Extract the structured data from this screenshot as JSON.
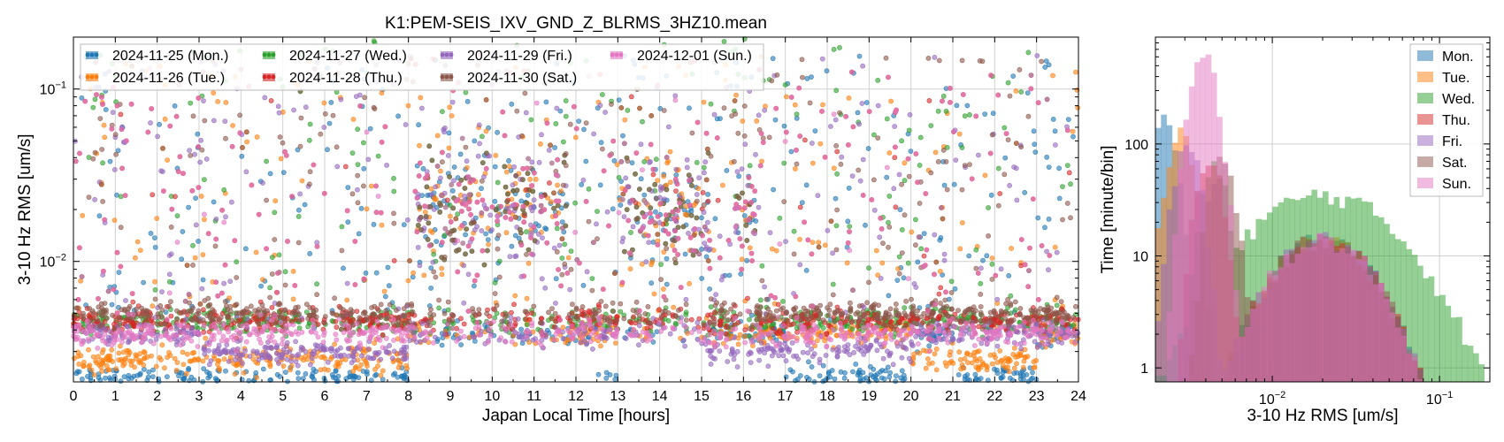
{
  "chart_data": [
    {
      "type": "scatter",
      "title": "K1:PEM-SEIS_IXV_GND_Z_BLRMS_3HZ10.mean",
      "xlabel": "Japan Local Time [hours]",
      "ylabel": "3-10 Hz RMS [um/s]",
      "xlim": [
        0,
        24
      ],
      "ylim": [
        0.002,
        0.2
      ],
      "yscale": "log",
      "grid": true,
      "legend_position": "top-left",
      "x_ticks": [
        "0",
        "1",
        "2",
        "3",
        "4",
        "5",
        "6",
        "7",
        "8",
        "9",
        "10",
        "11",
        "12",
        "13",
        "14",
        "15",
        "16",
        "17",
        "18",
        "19",
        "20",
        "21",
        "22",
        "23",
        "24"
      ],
      "y_ticks": [
        {
          "value": 0.01,
          "base": "10",
          "exp": "−2"
        },
        {
          "value": 0.1,
          "base": "10",
          "exp": "−1"
        }
      ],
      "series": [
        {
          "name": "2024-11-25 (Mon.)",
          "color": "#1f77b4",
          "low_baseline": 0.0021,
          "low_hours": [
            [
              0,
              8
            ],
            [
              12.5,
              13
            ],
            [
              17,
              20
            ],
            [
              21,
              23
            ]
          ]
        },
        {
          "name": "2024-11-26 (Tue.)",
          "color": "#ff7f0e",
          "low_baseline": 0.0027,
          "low_hours": [
            [
              0,
              8
            ],
            [
              20,
              23
            ]
          ]
        },
        {
          "name": "2024-11-27 (Wed.)",
          "color": "#2ca02c",
          "low_baseline": 0.0045,
          "low_hours": []
        },
        {
          "name": "2024-11-28 (Thu.)",
          "color": "#d62728",
          "low_baseline": 0.0045,
          "low_hours": []
        },
        {
          "name": "2024-11-29 (Fri.)",
          "color": "#9467bd",
          "low_baseline": 0.003,
          "low_hours": [
            [
              3,
              8
            ],
            [
              15,
              20
            ]
          ]
        },
        {
          "name": "2024-11-30 (Sat.)",
          "color": "#8c564b",
          "low_baseline": 0.005,
          "low_hours": []
        },
        {
          "name": "2024-12-01 (Sun.)",
          "color": "#e377c2",
          "low_baseline": 0.0038,
          "low_hours": []
        }
      ],
      "activity_windows_hours": [
        [
          8.2,
          11.8
        ],
        [
          13,
          15.2
        ],
        [
          15.8,
          16.3
        ]
      ],
      "activity_level": 0.02
    },
    {
      "type": "histogram",
      "xlabel": "3-10 Hz RMS [um/s]",
      "ylabel": "Time [minute/bin]",
      "xlim": [
        0.002,
        0.2
      ],
      "ylim": [
        0.75,
        900
      ],
      "xscale": "log",
      "yscale": "log",
      "grid": true,
      "legend_position": "top-right",
      "x_ticks": [
        {
          "value": 0.01,
          "base": "10",
          "exp": "−2"
        },
        {
          "value": 0.1,
          "base": "10",
          "exp": "−1"
        }
      ],
      "y_ticks": [
        {
          "value": 1,
          "label": "1"
        },
        {
          "value": 10,
          "label": "10"
        },
        {
          "value": 100,
          "label": "100"
        }
      ],
      "series": [
        {
          "name": "Mon.",
          "color": "#1f77b4",
          "peak_value": 170,
          "peak_rms": 0.0022
        },
        {
          "name": "Tue.",
          "color": "#ff7f0e",
          "peak_value": 120,
          "peak_rms": 0.0028
        },
        {
          "name": "Wed.",
          "color": "#2ca02c",
          "peak_value": 60,
          "peak_rms": 0.0045
        },
        {
          "name": "Thu.",
          "color": "#d62728",
          "peak_value": 80,
          "peak_rms": 0.0042
        },
        {
          "name": "Fri.",
          "color": "#9467bd",
          "peak_value": 100,
          "peak_rms": 0.0031
        },
        {
          "name": "Sat.",
          "color": "#8c564b",
          "peak_value": 70,
          "peak_rms": 0.005
        },
        {
          "name": "Sun.",
          "color": "#e377c2",
          "peak_value": 600,
          "peak_rms": 0.0039
        }
      ]
    }
  ]
}
